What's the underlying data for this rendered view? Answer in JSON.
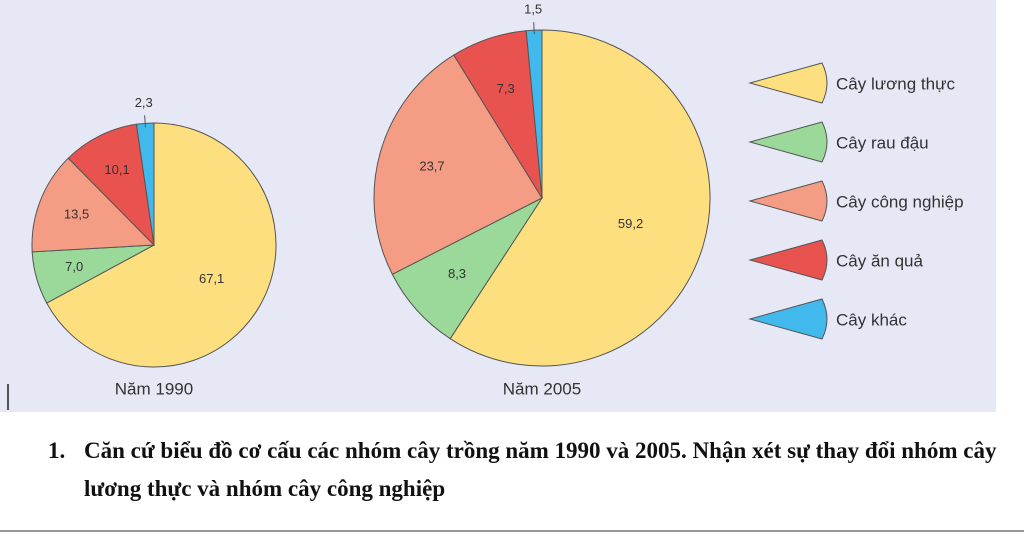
{
  "chart_data": {
    "type": "pie",
    "categories": [
      "Cây lương thực",
      "Cây rau đậu",
      "Cây công nghiệp",
      "Cây ăn quả",
      "Cây khác"
    ],
    "colors": [
      "#fddf80",
      "#9ad99a",
      "#f59c85",
      "#e8524f",
      "#41b9ec"
    ],
    "series": [
      {
        "name": "Năm 1990",
        "values": [
          67.1,
          7.0,
          13.5,
          10.1,
          2.3
        ],
        "value_labels": [
          "67,1",
          "7,0",
          "13,5",
          "10,1",
          "2,3"
        ]
      },
      {
        "name": "Năm 2005",
        "values": [
          59.2,
          8.3,
          23.7,
          7.3,
          1.5
        ],
        "value_labels": [
          "59,2",
          "8,3",
          "23,7",
          "7,3",
          "1,5"
        ]
      }
    ]
  },
  "question": {
    "number": "1.",
    "text": "Căn cứ biểu đồ cơ cấu các nhóm cây trồng năm 1990 và 2005. Nhận xét sự thay đổi nhóm cây lương thực và nhóm cây công nghiệp"
  }
}
